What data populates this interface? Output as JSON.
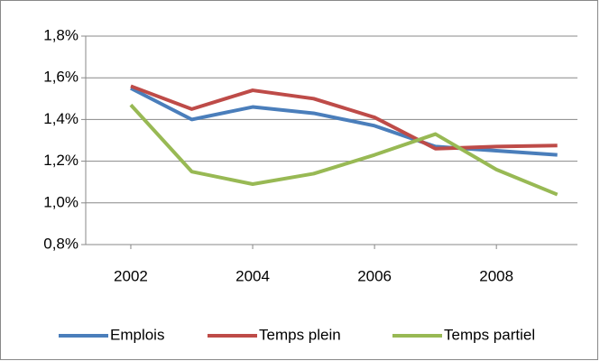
{
  "chart_data": {
    "type": "line",
    "x": [
      2002,
      2003,
      2004,
      2005,
      2006,
      2007,
      2008,
      2009
    ],
    "xlim": [
      2001.26,
      2009.33
    ],
    "xticks": [
      2002,
      2004,
      2006,
      2008
    ],
    "ylim": [
      0.8,
      1.8
    ],
    "yticks": [
      {
        "value": 0.8,
        "label": "0,8%"
      },
      {
        "value": 1.0,
        "label": "1,0%"
      },
      {
        "value": 1.2,
        "label": "1,2%"
      },
      {
        "value": 1.4,
        "label": "1,4%"
      },
      {
        "value": 1.6,
        "label": "1,6%"
      },
      {
        "value": 1.8,
        "label": "1,8%"
      }
    ],
    "grid": true,
    "legend": "bottom",
    "series": [
      {
        "name": "Emplois",
        "color": "#4a7ebb",
        "values": [
          1.55,
          1.4,
          1.46,
          1.43,
          1.37,
          1.27,
          1.25,
          1.23
        ]
      },
      {
        "name": "Temps plein",
        "color": "#be4b48",
        "values": [
          1.56,
          1.45,
          1.54,
          1.5,
          1.41,
          1.26,
          1.27,
          1.275
        ]
      },
      {
        "name": "Temps partiel",
        "color": "#98b954",
        "values": [
          1.47,
          1.15,
          1.09,
          1.14,
          1.23,
          1.33,
          1.16,
          1.04
        ]
      }
    ]
  }
}
